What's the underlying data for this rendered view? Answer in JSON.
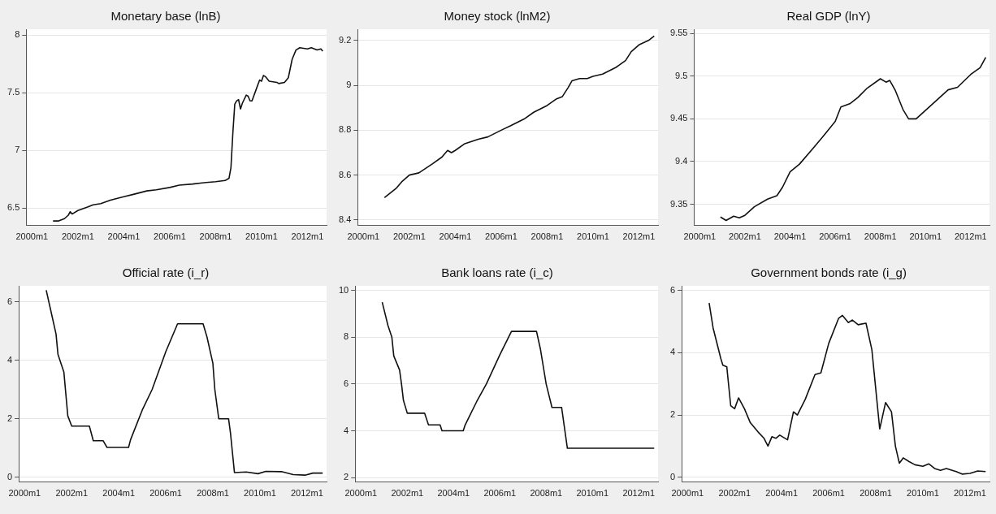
{
  "chart_data": [
    {
      "type": "line",
      "title": "Monetary base (lnB)",
      "color": "#111111",
      "grid": "y",
      "xlim": [
        "1999-10",
        "2012-11"
      ],
      "xticks": [
        {
          "value": "2000-01",
          "label": "2000m1"
        },
        {
          "value": "2002-01",
          "label": "2002m1"
        },
        {
          "value": "2004-01",
          "label": "2004m1"
        },
        {
          "value": "2006-01",
          "label": "2006m1"
        },
        {
          "value": "2008-01",
          "label": "2008m1"
        },
        {
          "value": "2010-01",
          "label": "2010m1"
        },
        {
          "value": "2012-01",
          "label": "2012m1"
        }
      ],
      "ylim": [
        6.35,
        8.05
      ],
      "yticks": [
        6.5,
        7,
        7.5,
        8
      ],
      "x": [
        "2000-12",
        "2001-03",
        "2001-06",
        "2001-08",
        "2001-09",
        "2001-10",
        "2002-01",
        "2002-06",
        "2002-09",
        "2003-01",
        "2003-06",
        "2004-01",
        "2004-06",
        "2005-01",
        "2005-06",
        "2006-01",
        "2006-06",
        "2007-01",
        "2007-06",
        "2008-01",
        "2008-06",
        "2008-08",
        "2008-09",
        "2008-10",
        "2008-11",
        "2008-12",
        "2009-01",
        "2009-02",
        "2009-03",
        "2009-05",
        "2009-06",
        "2009-07",
        "2009-08",
        "2009-10",
        "2009-12",
        "2010-01",
        "2010-02",
        "2010-03",
        "2010-05",
        "2010-09",
        "2010-10",
        "2011-01",
        "2011-03",
        "2011-05",
        "2011-07",
        "2011-09",
        "2012-01",
        "2012-03",
        "2012-06",
        "2012-08",
        "2012-09"
      ],
      "values": [
        6.39,
        6.39,
        6.41,
        6.44,
        6.47,
        6.45,
        6.48,
        6.51,
        6.53,
        6.54,
        6.57,
        6.6,
        6.62,
        6.65,
        6.66,
        6.68,
        6.7,
        6.71,
        6.72,
        6.73,
        6.74,
        6.76,
        6.85,
        7.15,
        7.4,
        7.43,
        7.44,
        7.36,
        7.41,
        7.48,
        7.47,
        7.43,
        7.43,
        7.52,
        7.61,
        7.6,
        7.65,
        7.64,
        7.6,
        7.59,
        7.58,
        7.59,
        7.63,
        7.79,
        7.87,
        7.89,
        7.88,
        7.89,
        7.87,
        7.88,
        7.86
      ]
    },
    {
      "type": "line",
      "title": "Money stock (lnM2)",
      "color": "#111111",
      "grid": "y",
      "xlim": [
        "1999-10",
        "2012-11"
      ],
      "xticks": [
        {
          "value": "2000-01",
          "label": "2000m1"
        },
        {
          "value": "2002-01",
          "label": "2002m1"
        },
        {
          "value": "2004-01",
          "label": "2004m1"
        },
        {
          "value": "2006-01",
          "label": "2006m1"
        },
        {
          "value": "2008-01",
          "label": "2008m1"
        },
        {
          "value": "2010-01",
          "label": "2010m1"
        },
        {
          "value": "2012-01",
          "label": "2012m1"
        }
      ],
      "ylim": [
        8.375,
        9.25
      ],
      "yticks": [
        8.4,
        8.6,
        8.8,
        9,
        9.2
      ],
      "x": [
        "2000-12",
        "2001-06",
        "2001-09",
        "2002-01",
        "2002-06",
        "2003-01",
        "2003-06",
        "2003-09",
        "2003-11",
        "2004-01",
        "2004-06",
        "2005-01",
        "2005-06",
        "2006-01",
        "2006-06",
        "2007-01",
        "2007-06",
        "2008-01",
        "2008-06",
        "2008-09",
        "2008-12",
        "2009-02",
        "2009-06",
        "2009-10",
        "2010-01",
        "2010-06",
        "2011-01",
        "2011-06",
        "2011-09",
        "2012-01",
        "2012-06",
        "2012-09"
      ],
      "values": [
        8.5,
        8.54,
        8.57,
        8.6,
        8.61,
        8.65,
        8.68,
        8.71,
        8.7,
        8.71,
        8.74,
        8.76,
        8.77,
        8.8,
        8.82,
        8.85,
        8.88,
        8.91,
        8.94,
        8.95,
        8.99,
        9.02,
        9.03,
        9.03,
        9.04,
        9.05,
        9.08,
        9.11,
        9.15,
        9.18,
        9.2,
        9.22
      ]
    },
    {
      "type": "line",
      "title": "Real GDP (lnY)",
      "color": "#111111",
      "grid": "y",
      "xlim": [
        "1999-10",
        "2012-11"
      ],
      "xticks": [
        {
          "value": "2000-01",
          "label": "2000m1"
        },
        {
          "value": "2002-01",
          "label": "2002m1"
        },
        {
          "value": "2004-01",
          "label": "2004m1"
        },
        {
          "value": "2006-01",
          "label": "2006m1"
        },
        {
          "value": "2008-01",
          "label": "2008m1"
        },
        {
          "value": "2010-01",
          "label": "2010m1"
        },
        {
          "value": "2012-01",
          "label": "2012m1"
        }
      ],
      "ylim": [
        9.325,
        9.555
      ],
      "yticks": [
        9.35,
        9.4,
        9.45,
        9.5,
        9.55
      ],
      "x": [
        "2000-12",
        "2001-03",
        "2001-07",
        "2001-10",
        "2002-01",
        "2002-06",
        "2003-01",
        "2003-06",
        "2003-09",
        "2004-01",
        "2004-06",
        "2005-01",
        "2005-06",
        "2006-01",
        "2006-04",
        "2006-09",
        "2007-01",
        "2007-06",
        "2008-01",
        "2008-04",
        "2008-06",
        "2008-09",
        "2009-01",
        "2009-04",
        "2009-08",
        "2010-01",
        "2010-06",
        "2011-01",
        "2011-06",
        "2012-01",
        "2012-06",
        "2012-09"
      ],
      "values": [
        9.335,
        9.331,
        9.336,
        9.334,
        9.337,
        9.347,
        9.356,
        9.36,
        9.37,
        9.388,
        9.397,
        9.415,
        9.428,
        9.447,
        9.464,
        9.468,
        9.475,
        9.486,
        9.497,
        9.493,
        9.495,
        9.483,
        9.461,
        9.45,
        9.45,
        9.46,
        9.47,
        9.484,
        9.487,
        9.502,
        9.51,
        9.522
      ]
    },
    {
      "type": "line",
      "title": "Official rate (i_r)",
      "color": "#111111",
      "grid": "y",
      "xlim": [
        "1999-10",
        "2012-11"
      ],
      "xticks": [
        {
          "value": "2000-01",
          "label": "2000m1"
        },
        {
          "value": "2002-01",
          "label": "2002m1"
        },
        {
          "value": "2004-01",
          "label": "2004m1"
        },
        {
          "value": "2006-01",
          "label": "2006m1"
        },
        {
          "value": "2008-01",
          "label": "2008m1"
        },
        {
          "value": "2010-01",
          "label": "2010m1"
        },
        {
          "value": "2012-01",
          "label": "2012m1"
        }
      ],
      "ylim": [
        -0.17,
        6.55
      ],
      "yticks": [
        0,
        2,
        4,
        6
      ],
      "x": [
        "2000-12",
        "2001-03",
        "2001-05",
        "2001-06",
        "2001-09",
        "2001-11",
        "2002-01",
        "2002-10",
        "2002-12",
        "2003-05",
        "2003-07",
        "2004-06",
        "2004-07",
        "2005-01",
        "2005-06",
        "2006-01",
        "2006-07",
        "2007-08",
        "2007-10",
        "2008-01",
        "2008-02",
        "2008-04",
        "2008-09",
        "2008-10",
        "2008-12",
        "2009-06",
        "2009-12",
        "2010-04",
        "2010-12",
        "2011-06",
        "2011-12",
        "2012-04",
        "2012-09"
      ],
      "values": [
        6.4,
        5.5,
        4.9,
        4.2,
        3.6,
        2.1,
        1.75,
        1.75,
        1.25,
        1.25,
        1.02,
        1.02,
        1.28,
        2.3,
        3.0,
        4.3,
        5.25,
        5.25,
        4.8,
        3.9,
        3.0,
        2.0,
        2.0,
        1.5,
        0.16,
        0.18,
        0.12,
        0.2,
        0.19,
        0.09,
        0.07,
        0.14,
        0.14
      ]
    },
    {
      "type": "line",
      "title": "Bank loans rate (i_c)",
      "color": "#111111",
      "grid": "y",
      "xlim": [
        "1999-10",
        "2012-11"
      ],
      "xticks": [
        {
          "value": "2000-01",
          "label": "2000m1"
        },
        {
          "value": "2002-01",
          "label": "2002m1"
        },
        {
          "value": "2004-01",
          "label": "2004m1"
        },
        {
          "value": "2006-01",
          "label": "2006m1"
        },
        {
          "value": "2008-01",
          "label": "2008m1"
        },
        {
          "value": "2010-01",
          "label": "2010m1"
        },
        {
          "value": "2012-01",
          "label": "2012m1"
        }
      ],
      "ylim": [
        1.8,
        10.2
      ],
      "yticks": [
        2,
        4,
        6,
        8,
        10
      ],
      "x": [
        "2000-12",
        "2001-03",
        "2001-05",
        "2001-06",
        "2001-09",
        "2001-10",
        "2001-11",
        "2002-01",
        "2002-10",
        "2002-12",
        "2003-06",
        "2003-07",
        "2004-06",
        "2004-07",
        "2005-01",
        "2005-06",
        "2006-01",
        "2006-07",
        "2007-08",
        "2007-10",
        "2008-01",
        "2008-04",
        "2008-09",
        "2008-12",
        "2012-09"
      ],
      "values": [
        9.5,
        8.5,
        8.0,
        7.2,
        6.6,
        6.0,
        5.3,
        4.75,
        4.75,
        4.25,
        4.25,
        4.0,
        4.0,
        4.25,
        5.25,
        6.0,
        7.25,
        8.25,
        8.25,
        7.5,
        6.0,
        5.0,
        5.0,
        3.25,
        3.25
      ]
    },
    {
      "type": "line",
      "title": "Government bonds rate (i_g)",
      "color": "#111111",
      "grid": "y",
      "xlim": [
        "1999-10",
        "2012-11"
      ],
      "xticks": [
        {
          "value": "2000-01",
          "label": "2000m1"
        },
        {
          "value": "2002-01",
          "label": "2002m1"
        },
        {
          "value": "2004-01",
          "label": "2004m1"
        },
        {
          "value": "2006-01",
          "label": "2006m1"
        },
        {
          "value": "2008-01",
          "label": "2008m1"
        },
        {
          "value": "2010-01",
          "label": "2010m1"
        },
        {
          "value": "2012-01",
          "label": "2012m1"
        }
      ],
      "ylim": [
        -0.16,
        6.15
      ],
      "yticks": [
        0,
        2,
        4,
        6
      ],
      "x": [
        "2000-12",
        "2001-02",
        "2001-06",
        "2001-07",
        "2001-09",
        "2001-11",
        "2002-01",
        "2002-03",
        "2002-06",
        "2002-09",
        "2003-01",
        "2003-04",
        "2003-06",
        "2003-08",
        "2003-10",
        "2003-12",
        "2004-04",
        "2004-07",
        "2004-09",
        "2005-01",
        "2005-06",
        "2005-09",
        "2006-01",
        "2006-06",
        "2006-08",
        "2006-11",
        "2007-01",
        "2007-04",
        "2007-08",
        "2007-11",
        "2008-03",
        "2008-06",
        "2008-09",
        "2008-11",
        "2009-01",
        "2009-03",
        "2009-06",
        "2009-09",
        "2010-01",
        "2010-04",
        "2010-07",
        "2010-10",
        "2011-01",
        "2011-06",
        "2011-09",
        "2012-01",
        "2012-05",
        "2012-09"
      ],
      "values": [
        5.6,
        4.8,
        3.8,
        3.6,
        3.55,
        2.3,
        2.2,
        2.55,
        2.2,
        1.75,
        1.45,
        1.25,
        1.0,
        1.3,
        1.25,
        1.35,
        1.2,
        2.1,
        2.0,
        2.5,
        3.3,
        3.35,
        4.3,
        5.1,
        5.2,
        4.97,
        5.05,
        4.9,
        4.95,
        4.1,
        1.55,
        2.4,
        2.1,
        1.0,
        0.45,
        0.62,
        0.5,
        0.4,
        0.35,
        0.43,
        0.28,
        0.22,
        0.28,
        0.18,
        0.1,
        0.12,
        0.2,
        0.18
      ]
    }
  ]
}
